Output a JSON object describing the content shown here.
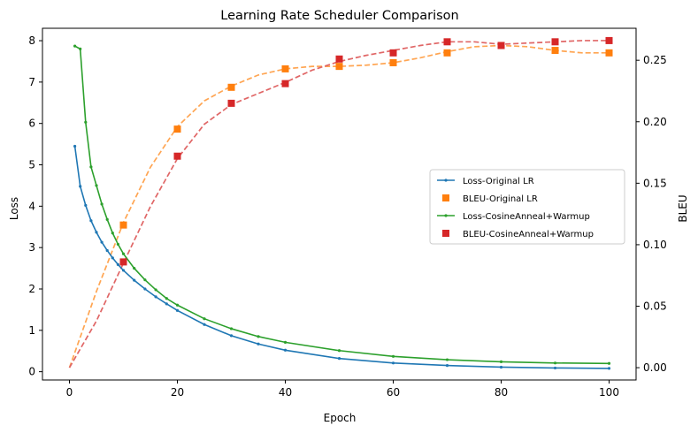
{
  "chart_data": {
    "type": "line",
    "title": "Learning Rate Scheduler Comparison",
    "xlabel": "Epoch",
    "ylabel_left": "Loss",
    "ylabel_right": "BLEU",
    "xlim": [
      -5,
      105
    ],
    "ylim_left": [
      -0.2,
      8.3
    ],
    "ylim_right": [
      -0.01,
      0.276
    ],
    "xticks": [
      0,
      20,
      40,
      60,
      80,
      100
    ],
    "yticks_left": [
      0,
      1,
      2,
      3,
      4,
      5,
      6,
      7,
      8
    ],
    "yticks_right": [
      0.0,
      0.05,
      0.1,
      0.15,
      0.2,
      0.25
    ],
    "ytick_labels_right": [
      "0.00",
      "0.05",
      "0.10",
      "0.15",
      "0.20",
      "0.25"
    ],
    "legend_location": "center-right",
    "series": [
      {
        "name": "Loss-Original LR",
        "axis": "left",
        "style": "solid-line-small-dots",
        "color": "#1f77b4",
        "x": [
          1,
          2,
          3,
          4,
          5,
          6,
          7,
          8,
          9,
          10,
          12,
          14,
          16,
          18,
          20,
          25,
          30,
          35,
          40,
          50,
          60,
          70,
          80,
          90,
          100
        ],
        "y": [
          5.45,
          4.48,
          4.02,
          3.65,
          3.37,
          3.13,
          2.93,
          2.75,
          2.59,
          2.45,
          2.21,
          2.0,
          1.81,
          1.64,
          1.48,
          1.14,
          0.87,
          0.67,
          0.52,
          0.32,
          0.21,
          0.15,
          0.11,
          0.09,
          0.08
        ]
      },
      {
        "name": "BLEU-Original LR",
        "axis": "right",
        "style": "square-markers",
        "color": "#ff7f0e",
        "x": [
          10,
          20,
          30,
          40,
          50,
          60,
          70,
          80,
          90,
          100
        ],
        "y": [
          0.116,
          0.194,
          0.228,
          0.243,
          0.245,
          0.248,
          0.256,
          0.262,
          0.258,
          0.256
        ]
      },
      {
        "name": "Loss-CosineAnneal+Warmup",
        "axis": "left",
        "style": "solid-line-small-dots",
        "color": "#2ca02c",
        "x": [
          1,
          2,
          3,
          4,
          5,
          6,
          7,
          8,
          9,
          10,
          12,
          14,
          16,
          18,
          20,
          25,
          30,
          35,
          40,
          50,
          60,
          70,
          80,
          90,
          100
        ],
        "y": [
          7.87,
          7.8,
          6.03,
          4.95,
          4.5,
          4.05,
          3.68,
          3.35,
          3.08,
          2.85,
          2.5,
          2.22,
          1.98,
          1.77,
          1.61,
          1.28,
          1.04,
          0.85,
          0.71,
          0.51,
          0.37,
          0.29,
          0.24,
          0.21,
          0.2
        ]
      },
      {
        "name": "BLEU-CosineAnneal+Warmup",
        "axis": "right",
        "style": "square-markers",
        "color": "#d62728",
        "x": [
          10,
          20,
          30,
          40,
          50,
          60,
          70,
          80,
          90,
          100
        ],
        "y": [
          0.086,
          0.172,
          0.215,
          0.231,
          0.251,
          0.256,
          0.265,
          0.262,
          0.265,
          0.266
        ]
      }
    ],
    "fits": [
      {
        "for": "BLEU-Original LR",
        "axis": "right",
        "style": "dashed",
        "color": "#ffa552",
        "x": [
          0,
          5,
          10,
          15,
          20,
          25,
          30,
          35,
          40,
          45,
          50,
          55,
          60,
          65,
          70,
          75,
          80,
          85,
          90,
          95,
          100
        ],
        "y": [
          0.0,
          0.062,
          0.118,
          0.163,
          0.196,
          0.217,
          0.229,
          0.238,
          0.243,
          0.245,
          0.245,
          0.246,
          0.248,
          0.252,
          0.257,
          0.261,
          0.262,
          0.261,
          0.258,
          0.256,
          0.256
        ]
      },
      {
        "for": "BLEU-CosineAnneal+Warmup",
        "axis": "right",
        "style": "dashed",
        "color": "#e06666",
        "x": [
          0,
          5,
          10,
          15,
          20,
          25,
          30,
          35,
          40,
          45,
          50,
          55,
          60,
          65,
          70,
          75,
          80,
          85,
          90,
          95,
          100
        ],
        "y": [
          0.0,
          0.038,
          0.085,
          0.131,
          0.17,
          0.198,
          0.214,
          0.223,
          0.232,
          0.242,
          0.249,
          0.254,
          0.258,
          0.262,
          0.265,
          0.265,
          0.263,
          0.264,
          0.265,
          0.266,
          0.266
        ]
      }
    ]
  }
}
